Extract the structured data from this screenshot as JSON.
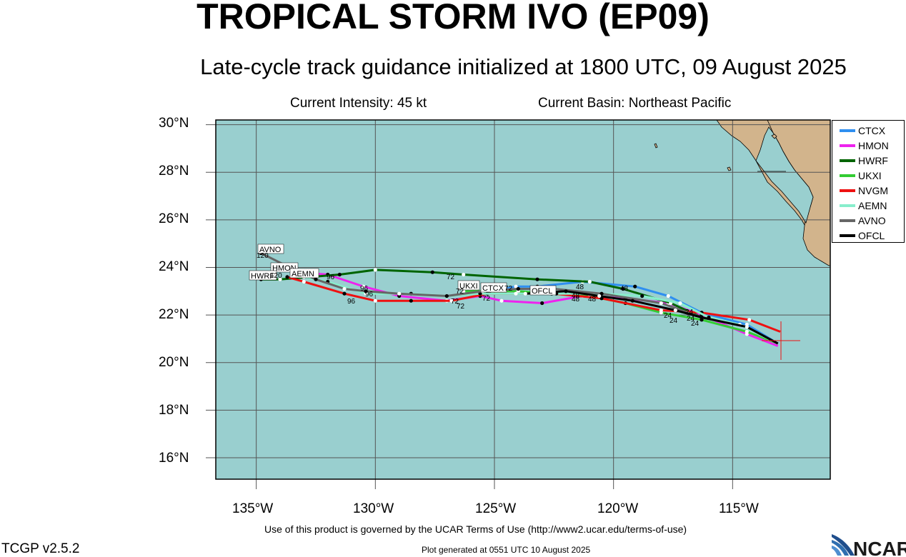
{
  "header": {
    "title": "TROPICAL STORM IVO (EP09)",
    "subtitle": "Late-cycle track guidance initialized at 1800 UTC, 09 August 2025",
    "current_intensity": "Current Intensity: 45 kt",
    "current_basin": "Current Basin: Northeast Pacific"
  },
  "axes": {
    "lat_labels": [
      "30°N",
      "28°N",
      "26°N",
      "24°N",
      "22°N",
      "20°N",
      "18°N",
      "16°N"
    ],
    "lon_labels": [
      "135°W",
      "130°W",
      "125°W",
      "120°W",
      "115°W"
    ]
  },
  "legend": [
    {
      "name": "CTCX",
      "color": "#2f8ff0"
    },
    {
      "name": "HMON",
      "color": "#ee22ee"
    },
    {
      "name": "HWRF",
      "color": "#006400"
    },
    {
      "name": "UKXI",
      "color": "#33cc33"
    },
    {
      "name": "NVGM",
      "color": "#ee1111"
    },
    {
      "name": "AEMN",
      "color": "#88eecc"
    },
    {
      "name": "AVNO",
      "color": "#666666"
    },
    {
      "name": "OFCL",
      "color": "#000000"
    }
  ],
  "colors": {
    "ocean": "#99cfcf",
    "land": "#d2b48c",
    "grid": "#555555",
    "storm_marker": "#ee1111"
  },
  "track_labels": {
    "avno": "AVNO",
    "avno_hour": "120",
    "hmon": "HMON",
    "hwrf": "HWRF",
    "hwrf_hour": "120",
    "aemn": "AEMN",
    "ukxi": "UKXI",
    "ctcx": "CTCX",
    "ofcl": "OFCL"
  },
  "hour_labels": {
    "h96": "96",
    "h72": "72",
    "h48": "48",
    "h24": "24"
  },
  "footer": {
    "terms": "Use of this product is governed by the UCAR Terms of Use (http://www2.ucar.edu/terms-of-use)",
    "version": "TCGP v2.5.2",
    "generated": "Plot generated at 0551 UTC   10 August 2025",
    "logo": "NCAR"
  },
  "chart_data": {
    "type": "line",
    "title": "TROPICAL STORM IVO (EP09)",
    "subtitle": "Late-cycle track guidance initialized at 1800 UTC, 09 August 2025",
    "xlim": [
      -136.7,
      -110.9
    ],
    "ylim": [
      15.1,
      30.2
    ],
    "series": [
      {
        "name": "CTCX",
        "points": [
          [
            -113.1,
            20.8
          ],
          [
            -114.4,
            21.6
          ],
          [
            -116.3,
            22.1
          ],
          [
            -117.7,
            22.8
          ],
          [
            -119.1,
            23.2
          ],
          [
            -121.3,
            23.4
          ],
          [
            -123.2,
            23.2
          ],
          [
            -124.1,
            23.2
          ],
          [
            -125.2,
            23.0
          ]
        ]
      },
      {
        "name": "HMON",
        "points": [
          [
            -113.1,
            20.7
          ],
          [
            -114.4,
            21.2
          ],
          [
            -116.3,
            22.0
          ],
          [
            -117.7,
            22.5
          ],
          [
            -119.5,
            22.7
          ],
          [
            -121.3,
            22.8
          ],
          [
            -123.0,
            22.5
          ],
          [
            -124.7,
            22.6
          ],
          [
            -125.6,
            22.8
          ],
          [
            -127.0,
            22.6
          ],
          [
            -129.0,
            22.8
          ],
          [
            -130.5,
            23.2
          ],
          [
            -132.0,
            23.7
          ],
          [
            -133.3,
            23.8
          ]
        ]
      },
      {
        "name": "HWRF",
        "points": [
          [
            -113.1,
            20.8
          ],
          [
            -114.4,
            21.5
          ],
          [
            -116.3,
            21.9
          ],
          [
            -117.6,
            22.5
          ],
          [
            -119.6,
            23.1
          ],
          [
            -121.0,
            23.4
          ],
          [
            -123.2,
            23.5
          ],
          [
            -126.3,
            23.7
          ],
          [
            -127.6,
            23.8
          ],
          [
            -130.0,
            23.9
          ],
          [
            -131.5,
            23.7
          ],
          [
            -134.0,
            23.5
          ],
          [
            -134.8,
            23.5
          ]
        ]
      },
      {
        "name": "UKXI",
        "points": [
          [
            -113.1,
            20.8
          ],
          [
            -114.4,
            21.3
          ],
          [
            -116.3,
            21.8
          ],
          [
            -118.0,
            22.1
          ],
          [
            -119.5,
            22.5
          ],
          [
            -121.0,
            22.8
          ],
          [
            -122.6,
            22.9
          ],
          [
            -124.0,
            23.0
          ],
          [
            -125.2,
            23.0
          ],
          [
            -126.3,
            23.0
          ]
        ]
      },
      {
        "name": "NVGM",
        "points": [
          [
            -113.0,
            21.3
          ],
          [
            -114.3,
            21.8
          ],
          [
            -116.3,
            22.1
          ],
          [
            -118.0,
            22.2
          ],
          [
            -120.5,
            22.7
          ],
          [
            -122.5,
            22.9
          ],
          [
            -125.3,
            22.9
          ],
          [
            -126.8,
            22.6
          ],
          [
            -128.5,
            22.6
          ],
          [
            -130.0,
            22.6
          ],
          [
            -131.3,
            22.9
          ],
          [
            -133.0,
            23.4
          ],
          [
            -133.7,
            23.6
          ]
        ]
      },
      {
        "name": "AEMN",
        "points": [
          [
            -113.1,
            20.8
          ],
          [
            -114.7,
            21.6
          ],
          [
            -116.0,
            21.9
          ],
          [
            -117.2,
            22.5
          ],
          [
            -118.8,
            22.8
          ],
          [
            -120.5,
            22.9
          ],
          [
            -122.4,
            22.9
          ],
          [
            -124.1,
            22.9
          ],
          [
            -125.6,
            22.9
          ],
          [
            -127.0,
            22.8
          ],
          [
            -128.5,
            22.9
          ],
          [
            -130.4,
            22.9
          ],
          [
            -132.0,
            23.4
          ],
          [
            -133.0,
            23.6
          ]
        ]
      },
      {
        "name": "AVNO",
        "points": [
          [
            -113.1,
            20.8
          ],
          [
            -114.4,
            21.5
          ],
          [
            -116.3,
            21.9
          ],
          [
            -118.0,
            22.5
          ],
          [
            -120.5,
            22.9
          ],
          [
            -122.5,
            23.1
          ],
          [
            -124.0,
            23.1
          ],
          [
            -125.5,
            23.0
          ],
          [
            -127.0,
            22.8
          ],
          [
            -129.0,
            22.9
          ],
          [
            -130.4,
            23.0
          ],
          [
            -131.3,
            23.1
          ],
          [
            -132.5,
            23.5
          ],
          [
            -133.8,
            24.1
          ],
          [
            -134.8,
            24.6
          ]
        ]
      },
      {
        "name": "OFCL",
        "points": [
          [
            -113.1,
            20.8
          ],
          [
            -114.4,
            21.5
          ],
          [
            -116.3,
            21.9
          ],
          [
            -117.4,
            22.2
          ],
          [
            -119.2,
            22.6
          ],
          [
            -120.6,
            22.8
          ],
          [
            -122.0,
            23.0
          ],
          [
            -123.7,
            22.9
          ]
        ]
      }
    ]
  }
}
